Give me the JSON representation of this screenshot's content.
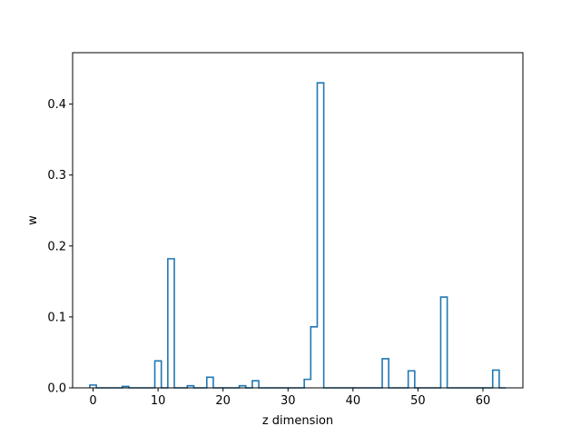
{
  "chart_data": {
    "type": "line",
    "style": "step-histogram",
    "xlabel": "z dimension",
    "ylabel": "w",
    "xlim": [
      -3.15,
      66.15
    ],
    "ylim": [
      0,
      0.4725
    ],
    "xticks": [
      0,
      10,
      20,
      30,
      40,
      50,
      60
    ],
    "yticks": [
      0.0,
      0.1,
      0.2,
      0.3,
      0.4
    ],
    "xtick_labels": [
      "0",
      "10",
      "20",
      "30",
      "40",
      "50",
      "60"
    ],
    "ytick_labels": [
      "0.0",
      "0.1",
      "0.2",
      "0.3",
      "0.4"
    ],
    "grid": false,
    "series": [
      {
        "color": "#1f77b4",
        "x": [
          0,
          1,
          2,
          3,
          4,
          5,
          6,
          7,
          8,
          9,
          10,
          11,
          12,
          13,
          14,
          15,
          16,
          17,
          18,
          19,
          20,
          21,
          22,
          23,
          24,
          25,
          26,
          27,
          28,
          29,
          30,
          31,
          32,
          33,
          34,
          35,
          36,
          37,
          38,
          39,
          40,
          41,
          42,
          43,
          44,
          45,
          46,
          47,
          48,
          49,
          50,
          51,
          52,
          53,
          54,
          55,
          56,
          57,
          58,
          59,
          60,
          61,
          62,
          63
        ],
        "values": [
          0.004,
          0,
          0,
          0,
          0,
          0.002,
          0,
          0,
          0,
          0,
          0.038,
          0,
          0.182,
          0,
          0,
          0.003,
          0,
          0,
          0.015,
          0,
          0,
          0,
          0,
          0.003,
          0,
          0.01,
          0,
          0,
          0,
          0,
          0,
          0,
          0,
          0.012,
          0.086,
          0.43,
          0,
          0,
          0,
          0,
          0,
          0,
          0,
          0,
          0,
          0.041,
          0,
          0,
          0,
          0.024,
          0,
          0,
          0,
          0,
          0.128,
          0,
          0,
          0,
          0,
          0,
          0,
          0,
          0.025,
          0
        ]
      }
    ]
  }
}
